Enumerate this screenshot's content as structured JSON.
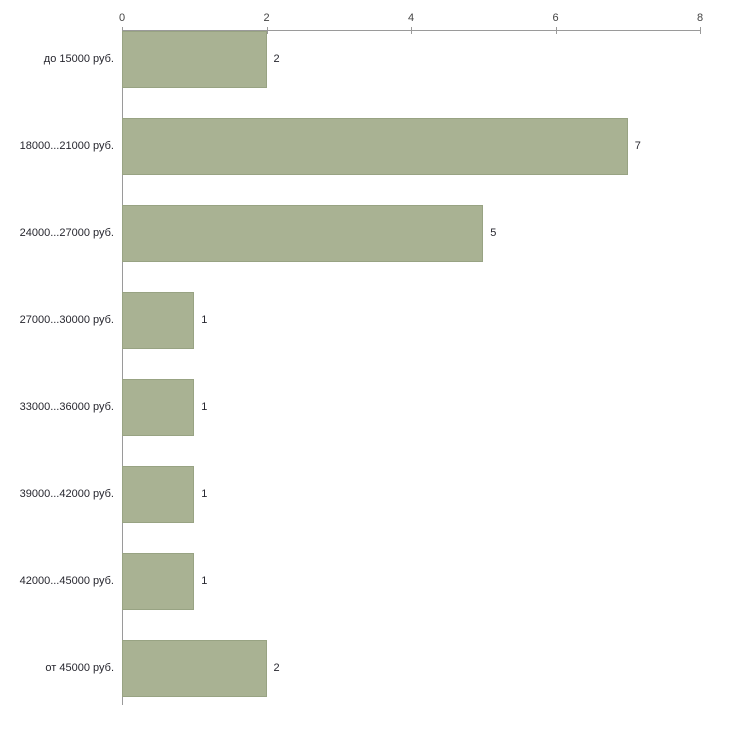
{
  "chart_data": {
    "type": "bar",
    "orientation": "horizontal",
    "title": "",
    "xlabel": "",
    "ylabel": "",
    "xlim": [
      0,
      8
    ],
    "x_ticks": [
      0,
      2,
      4,
      6,
      8
    ],
    "grid": false,
    "legend": false,
    "categories": [
      "до 15000 руб.",
      "18000...21000 руб.",
      "24000...27000 руб.",
      "27000...30000 руб.",
      "33000...36000 руб.",
      "39000...42000 руб.",
      "42000...45000 руб.",
      "от 45000 руб."
    ],
    "values": [
      2,
      7,
      5,
      1,
      1,
      1,
      1,
      2
    ],
    "colors": {
      "bar_fill": "#a9b293",
      "bar_border": "#98a383",
      "axis_line": "#9a9a9a",
      "tick_text": "#444444",
      "label_text": "#26262e",
      "background": "#ffffff"
    }
  }
}
